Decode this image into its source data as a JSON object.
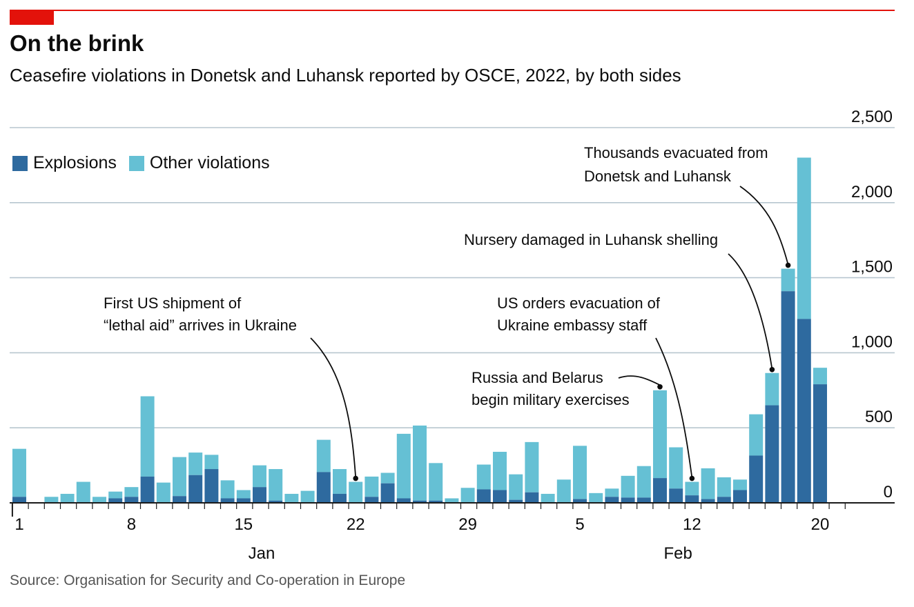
{
  "header": {
    "title": "On the brink",
    "subtitle": "Ceasefire violations in Donetsk and Luhansk reported by OSCE, 2022, by both sides"
  },
  "legend": {
    "explosions": "Explosions",
    "other": "Other violations"
  },
  "colors": {
    "explosions": "#2e6a9f",
    "other": "#65c0d4",
    "brand": "#e3120b",
    "grid": "#b7c6cf"
  },
  "source": "Source: Organisation for Security and Co-operation in Europe",
  "chart_data": {
    "type": "bar",
    "stacked": true,
    "title": "On the brink",
    "subtitle": "Ceasefire violations in Donetsk and Luhansk reported by OSCE, 2022, by both sides",
    "ylim": [
      0,
      2500
    ],
    "y_ticks": [
      0,
      500,
      "1,000",
      "1,500",
      "2,000",
      "2,500"
    ],
    "y_tick_labels": [
      "0",
      "500",
      "1,000",
      "1,500",
      "2,000",
      "2,500"
    ],
    "grid": true,
    "legend_position": "top-left",
    "x_tick_labels": [
      {
        "day": 1,
        "label": "1"
      },
      {
        "day": 8,
        "label": "8"
      },
      {
        "day": 15,
        "label": "15"
      },
      {
        "day": 22,
        "label": "22"
      },
      {
        "day": 29,
        "label": "29"
      },
      {
        "day": 36,
        "label": "5"
      },
      {
        "day": 43,
        "label": "12"
      },
      {
        "day": 51,
        "label": "20"
      }
    ],
    "month_labels": [
      {
        "day": 16,
        "label": "Jan"
      },
      {
        "day": 42,
        "label": "Feb"
      }
    ],
    "categories": [
      "2022-01-01",
      "2022-01-02",
      "2022-01-03",
      "2022-01-04",
      "2022-01-05",
      "2022-01-06",
      "2022-01-07",
      "2022-01-08",
      "2022-01-09",
      "2022-01-10",
      "2022-01-11",
      "2022-01-12",
      "2022-01-13",
      "2022-01-14",
      "2022-01-15",
      "2022-01-16",
      "2022-01-17",
      "2022-01-18",
      "2022-01-19",
      "2022-01-20",
      "2022-01-21",
      "2022-01-22",
      "2022-01-23",
      "2022-01-24",
      "2022-01-25",
      "2022-01-26",
      "2022-01-27",
      "2022-01-28",
      "2022-01-29",
      "2022-01-30",
      "2022-01-31",
      "2022-02-01",
      "2022-02-02",
      "2022-02-03",
      "2022-02-04",
      "2022-02-05",
      "2022-02-06",
      "2022-02-07",
      "2022-02-08",
      "2022-02-09",
      "2022-02-10",
      "2022-02-11",
      "2022-02-12",
      "2022-02-13",
      "2022-02-14",
      "2022-02-15",
      "2022-02-16",
      "2022-02-17",
      "2022-02-18",
      "2022-02-19",
      "2022-02-20",
      "2022-02-21"
    ],
    "series": [
      {
        "name": "Explosions",
        "values": [
          40,
          0,
          5,
          5,
          5,
          5,
          30,
          40,
          175,
          5,
          45,
          185,
          225,
          30,
          30,
          105,
          15,
          5,
          5,
          205,
          60,
          5,
          40,
          130,
          30,
          15,
          15,
          5,
          5,
          90,
          85,
          20,
          70,
          5,
          5,
          25,
          5,
          40,
          35,
          35,
          165,
          95,
          50,
          25,
          40,
          85,
          315,
          650,
          1410,
          1225,
          790,
          0
        ]
      },
      {
        "name": "Other violations",
        "values": [
          320,
          0,
          35,
          55,
          135,
          35,
          45,
          65,
          535,
          130,
          260,
          150,
          95,
          120,
          55,
          145,
          210,
          55,
          75,
          215,
          165,
          135,
          135,
          70,
          430,
          500,
          250,
          25,
          95,
          165,
          255,
          170,
          335,
          55,
          150,
          355,
          60,
          55,
          145,
          210,
          585,
          275,
          90,
          205,
          130,
          70,
          275,
          215,
          150,
          1075,
          110,
          0
        ]
      }
    ],
    "totals": [
      360,
      0,
      40,
      60,
      140,
      40,
      75,
      105,
      710,
      135,
      305,
      335,
      320,
      150,
      85,
      250,
      225,
      60,
      80,
      420,
      225,
      140,
      175,
      200,
      460,
      515,
      265,
      30,
      100,
      255,
      340,
      190,
      405,
      60,
      155,
      380,
      65,
      95,
      180,
      245,
      750,
      370,
      140,
      230,
      170,
      155,
      590,
      865,
      1560,
      2300,
      900,
      0
    ],
    "annotations": [
      {
        "text": [
          "First US shipment of",
          "“lethal aid” arrives in Ukraine"
        ],
        "day": 22
      },
      {
        "text": [
          "US orders evacuation of",
          "Ukraine embassy staff"
        ],
        "day": 43
      },
      {
        "text": [
          "Russia and Belarus",
          "begin military exercises"
        ],
        "day": 41
      },
      {
        "text": [
          "Nursery damaged in Luhansk shelling"
        ],
        "day": 48
      },
      {
        "text": [
          "Thousands evacuated from",
          "Donetsk and Luhansk"
        ],
        "day": 49
      }
    ]
  }
}
